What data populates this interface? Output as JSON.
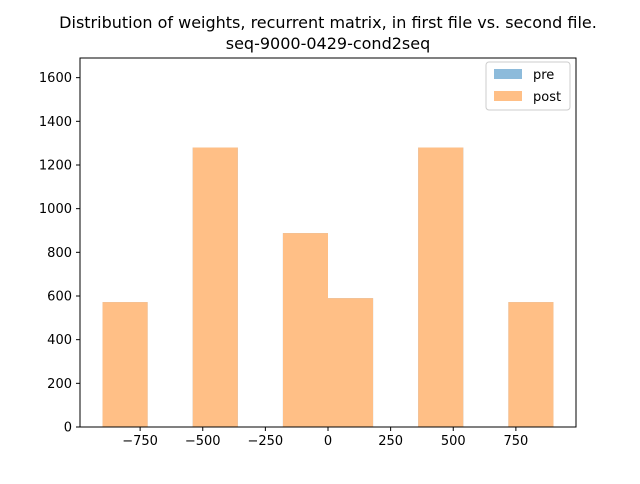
{
  "chart_data": {
    "type": "bar",
    "title": "Distribution of weights, recurrent matrix, in first file vs. second file.",
    "subtitle": "seq-9000-0429-cond2seq",
    "xlabel": "",
    "ylabel": "",
    "xlim": [
      -990,
      990
    ],
    "ylim": [
      0,
      1690
    ],
    "x_ticks": [
      -750,
      -500,
      -250,
      0,
      250,
      500,
      750
    ],
    "x_tick_labels": [
      "−750",
      "−500",
      "−250",
      "0",
      "250",
      "500",
      "750"
    ],
    "y_ticks": [
      0,
      200,
      400,
      600,
      800,
      1000,
      1200,
      1400,
      1600
    ],
    "y_tick_labels": [
      "0",
      "200",
      "400",
      "600",
      "800",
      "1000",
      "1200",
      "1400",
      "1600"
    ],
    "grid": false,
    "legend_position": "top-right",
    "series": [
      {
        "name": "pre",
        "color": "#8dbbdb",
        "bins": [
          {
            "x0": -900,
            "x1": -720,
            "count": 572
          },
          {
            "x0": -540,
            "x1": -360,
            "count": 1280
          },
          {
            "x0": -180,
            "x1": 0,
            "count": 888
          },
          {
            "x0": 0,
            "x1": 180,
            "count": 590
          },
          {
            "x0": 360,
            "x1": 540,
            "count": 1280
          },
          {
            "x0": 720,
            "x1": 900,
            "count": 572
          }
        ]
      },
      {
        "name": "post",
        "color": "#ffbf86",
        "bins": [
          {
            "x0": -900,
            "x1": -720,
            "count": 572
          },
          {
            "x0": -540,
            "x1": -360,
            "count": 1280
          },
          {
            "x0": -180,
            "x1": 0,
            "count": 888
          },
          {
            "x0": 0,
            "x1": 180,
            "count": 590
          },
          {
            "x0": 360,
            "x1": 540,
            "count": 1280
          },
          {
            "x0": 720,
            "x1": 900,
            "count": 572
          }
        ]
      }
    ]
  }
}
